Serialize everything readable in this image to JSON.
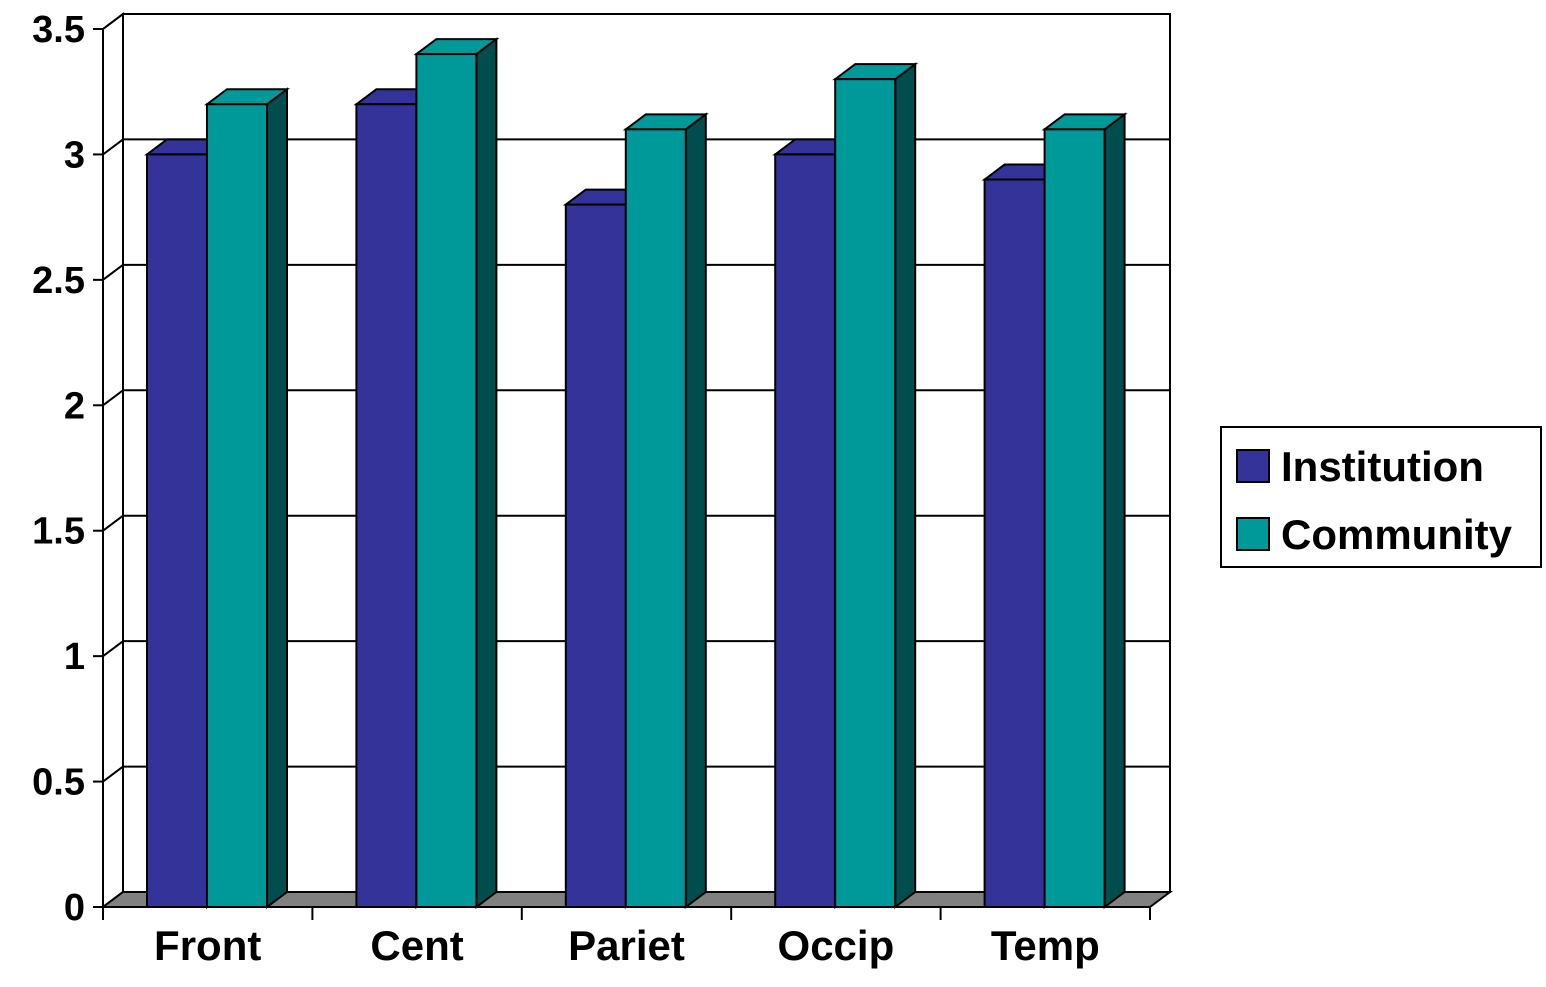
{
  "chart_data": {
    "type": "bar",
    "categories": [
      "Front",
      "Cent",
      "Pariet",
      "Occip",
      "Temp"
    ],
    "series": [
      {
        "name": "Institution",
        "values": [
          3.0,
          3.2,
          2.8,
          3.0,
          2.9
        ]
      },
      {
        "name": "Community",
        "values": [
          3.2,
          3.4,
          3.1,
          3.3,
          3.1
        ]
      }
    ],
    "yticks": [
      "0",
      "0.5",
      "1",
      "1.5",
      "2",
      "2.5",
      "3",
      "3.5"
    ],
    "ylim": [
      0,
      3.5
    ],
    "grid": true,
    "legend_position": "right",
    "style": "3d-clustered-column"
  },
  "colors": {
    "institution_front": "#333399",
    "institution_side": "#1a1a4d",
    "community_front": "#009999",
    "community_side": "#004d4d",
    "floor": "#808080",
    "grid": "#000000"
  }
}
